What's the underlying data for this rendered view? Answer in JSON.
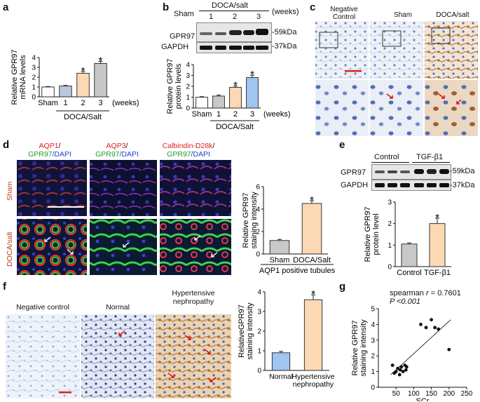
{
  "panels": {
    "a": {
      "letter": "a",
      "chart_data": {
        "type": "bar",
        "categories": [
          "Sham",
          "1",
          "2",
          "3"
        ],
        "values": [
          1.0,
          1.1,
          2.4,
          3.4
        ],
        "errors": [
          0.05,
          0.06,
          0.18,
          0.22
        ],
        "significant": [
          false,
          false,
          true,
          true
        ],
        "ylabel": "Relative GPR97\nmRNA levels",
        "xunit": "(weeks)",
        "group_label": "DOCA/Salt",
        "ylim": [
          0,
          4
        ],
        "yticks": [
          "0",
          "1",
          "2",
          "3",
          "4"
        ],
        "colors": [
          "#ffffff",
          "#b9c7e0",
          "#fbd9b4",
          "#c8c8c8"
        ],
        "star": "*"
      }
    },
    "b": {
      "letter": "b",
      "blot": {
        "header_group": "DOCA/salt",
        "header_unit": "(weeks)",
        "lanes": [
          "Sham",
          "1",
          "2",
          "3"
        ],
        "rows": [
          {
            "name": "GPR97",
            "size": "-59kDa"
          },
          {
            "name": "GAPDH",
            "size": "-37kDa"
          }
        ]
      },
      "chart_data": {
        "type": "bar",
        "categories": [
          "Sham",
          "1",
          "2",
          "3"
        ],
        "values": [
          1.0,
          1.1,
          1.9,
          2.8
        ],
        "errors": [
          0.05,
          0.1,
          0.12,
          0.22
        ],
        "significant": [
          false,
          false,
          true,
          true
        ],
        "ylabel": "Relative GPR97\nprotein levels",
        "xunit": "(weeks)",
        "group_label": "DOCA/Salt",
        "ylim": [
          0,
          4
        ],
        "yticks": [
          "0",
          "1",
          "2",
          "3",
          "4"
        ],
        "colors": [
          "#ffffff",
          "#c8c8c8",
          "#fbd9b4",
          "#9fc5f0"
        ],
        "star": "*"
      }
    },
    "c": {
      "letter": "c",
      "columns": [
        "Negative\nControl",
        "Sham",
        "DOCA/salt"
      ]
    },
    "d": {
      "letter": "d",
      "stain_titles": [
        {
          "red": "AQP1",
          "sep": "/",
          "green": "GPR97",
          "blue": "/DAPI"
        },
        {
          "red": "AQP3",
          "sep": "/",
          "green": "GPR97",
          "blue": "/DAPI"
        },
        {
          "red": "Calbindin-D28k",
          "sep": "/",
          "green": "GPR97",
          "blue": "/DAPI"
        }
      ],
      "row_labels": [
        "Sham",
        "DOCA/salt"
      ],
      "chart_data": {
        "type": "bar",
        "categories": [
          "Sham",
          "DOCA/Salt"
        ],
        "values": [
          1.2,
          4.5
        ],
        "errors": [
          0.1,
          0.25
        ],
        "significant": [
          false,
          true
        ],
        "ylabel": "Relative GPR97\nstaining intensity",
        "group_label": "AQP1 positive tubules",
        "ylim": [
          0,
          6
        ],
        "yticks": [
          "0",
          "2",
          "4",
          "6"
        ],
        "colors": [
          "#c8c8c8",
          "#fbd9b4"
        ],
        "star": "*"
      }
    },
    "e": {
      "letter": "e",
      "blot": {
        "groups": [
          "Control",
          "TGF-β1"
        ],
        "rows": [
          {
            "name": "GPR97",
            "size": "-59kDa"
          },
          {
            "name": "GAPDH",
            "size": "-37kDa"
          }
        ]
      },
      "chart_data": {
        "type": "bar",
        "categories": [
          "Control",
          "TGF-β1"
        ],
        "values": [
          1.05,
          2.0
        ],
        "errors": [
          0.05,
          0.25
        ],
        "significant": [
          false,
          true
        ],
        "ylabel": "Relative GPR97\nprotein level",
        "ylim": [
          0,
          3
        ],
        "yticks": [
          "0",
          "1",
          "2",
          "3"
        ],
        "colors": [
          "#c8c8c8",
          "#fbd9b4"
        ],
        "star": "*"
      }
    },
    "f": {
      "letter": "f",
      "columns": [
        "Negative control",
        "Normal",
        "Hypertensive\nnephropathy"
      ],
      "chart_data": {
        "type": "bar",
        "categories": [
          "Normal",
          "Hypertensive\nnephropathy"
        ],
        "values": [
          0.9,
          3.6
        ],
        "errors": [
          0.07,
          0.25
        ],
        "significant": [
          false,
          true
        ],
        "ylabel": "RelativeGPR97\nstaining intensity",
        "ylim": [
          0,
          4
        ],
        "yticks": [
          "0",
          "1",
          "2",
          "3",
          "4"
        ],
        "colors": [
          "#9fc5f0",
          "#fbd9b4"
        ],
        "star": "*"
      }
    },
    "g": {
      "letter": "g",
      "annotation_prefix": "spearman ",
      "annotation_r": "r",
      "annotation_r_value": " = 0.7601",
      "annotation_p": "P <0.001",
      "chart_data": {
        "type": "scatter",
        "xlabel": "SCr",
        "ylabel": "Relative GPR97\nstaining intensity",
        "xlim": [
          0,
          250
        ],
        "ylim": [
          0,
          5
        ],
        "xticks": [
          "50",
          "100",
          "150",
          "200",
          "250"
        ],
        "yticks": [
          "0",
          "1",
          "2",
          "3",
          "4",
          "5"
        ],
        "points": [
          [
            40,
            1.4
          ],
          [
            45,
            0.9
          ],
          [
            50,
            1.0
          ],
          [
            55,
            1.2
          ],
          [
            60,
            0.8
          ],
          [
            62,
            1.1
          ],
          [
            65,
            1.3
          ],
          [
            70,
            1.0
          ],
          [
            75,
            1.4
          ],
          [
            78,
            1.1
          ],
          [
            80,
            1.3
          ],
          [
            120,
            4.0
          ],
          [
            135,
            3.8
          ],
          [
            150,
            4.3
          ],
          [
            160,
            3.8
          ],
          [
            170,
            3.7
          ],
          [
            200,
            2.4
          ]
        ],
        "fit_line": [
          [
            35,
            0.8
          ],
          [
            205,
            4.3
          ]
        ]
      }
    }
  }
}
